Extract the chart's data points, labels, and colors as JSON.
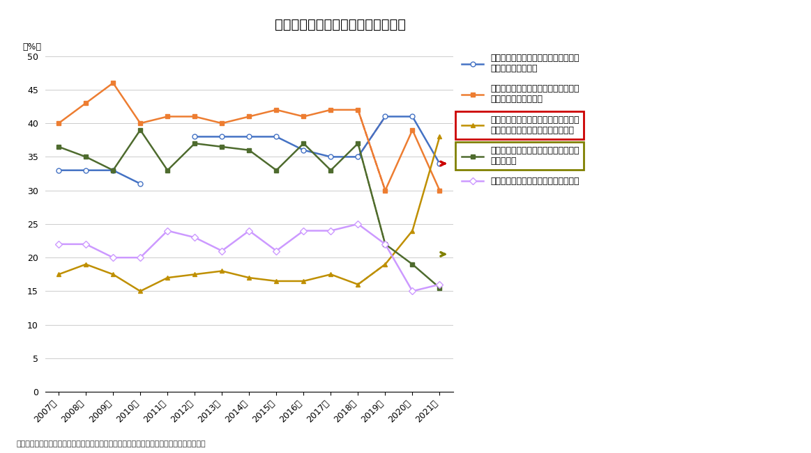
{
  "title": "図表－６　一戸建てが望ましい理由",
  "ylabel": "（%）",
  "years": [
    "2007年",
    "2008年",
    "2009年",
    "2010年",
    "2011年",
    "2012年",
    "2013年",
    "2014年",
    "2015年",
    "2016年",
    "2017年",
    "2018年",
    "2019年",
    "2020年",
    "2021年"
  ],
  "blue_data_seg1": [
    33,
    33,
    33,
    31
  ],
  "blue_data_seg2": [
    38,
    38,
    38,
    38,
    36,
    35,
    35,
    41,
    41,
    34
  ],
  "orange_data": [
    40,
    43,
    46,
    40,
    41,
    41,
    40,
    41,
    42,
    41,
    42,
    42,
    30,
    39,
    30
  ],
  "gold_data": [
    17.5,
    19,
    17.5,
    15,
    17,
    17.5,
    18,
    17,
    16.5,
    16.5,
    17.5,
    16,
    19,
    24,
    38
  ],
  "green_data": [
    36.5,
    35,
    33,
    39,
    33,
    37,
    36.5,
    36,
    33,
    37,
    33,
    37,
    22,
    19,
    15.5
  ],
  "pink_data": [
    22,
    22,
    20,
    20,
    24,
    23,
    21,
    24,
    21,
    24,
    24,
    25,
    22,
    15,
    16
  ],
  "blue_color": "#4472C4",
  "orange_color": "#ED7D31",
  "gold_color": "#BF8F00",
  "green_color": "#4E6B2E",
  "pink_color": "#CC99FF",
  "red_dash_color": "#CC0000",
  "olive_dash_color": "#808000",
  "ylim": [
    0,
    50
  ],
  "yticks": [
    0,
    5,
    10,
    15,
    20,
    25,
    30,
    35,
    40,
    45,
    50
  ],
  "legend_blue": "一戸建ての方が、隣家との関係に気を\n使わなくてすむから",
  "legend_orange": "購入すれば、土地を含めてすべて自分\n自身のものになるから",
  "legend_gold": "一戸建ての方が、補修や建替えの際の\n手続きが簡易で、自由度が高いから",
  "legend_green": "一戸建ての方が、周りの景観や住環境\nが良いから",
  "legend_pink": "一戸建ての方が、広い物件が多いから",
  "source_text": "（出所）国土交通省「土地問題に関する国民の意識調査」をもとにニッセイ基礎研究所作成",
  "background_color": "#ffffff",
  "grid_color": "#cccccc"
}
